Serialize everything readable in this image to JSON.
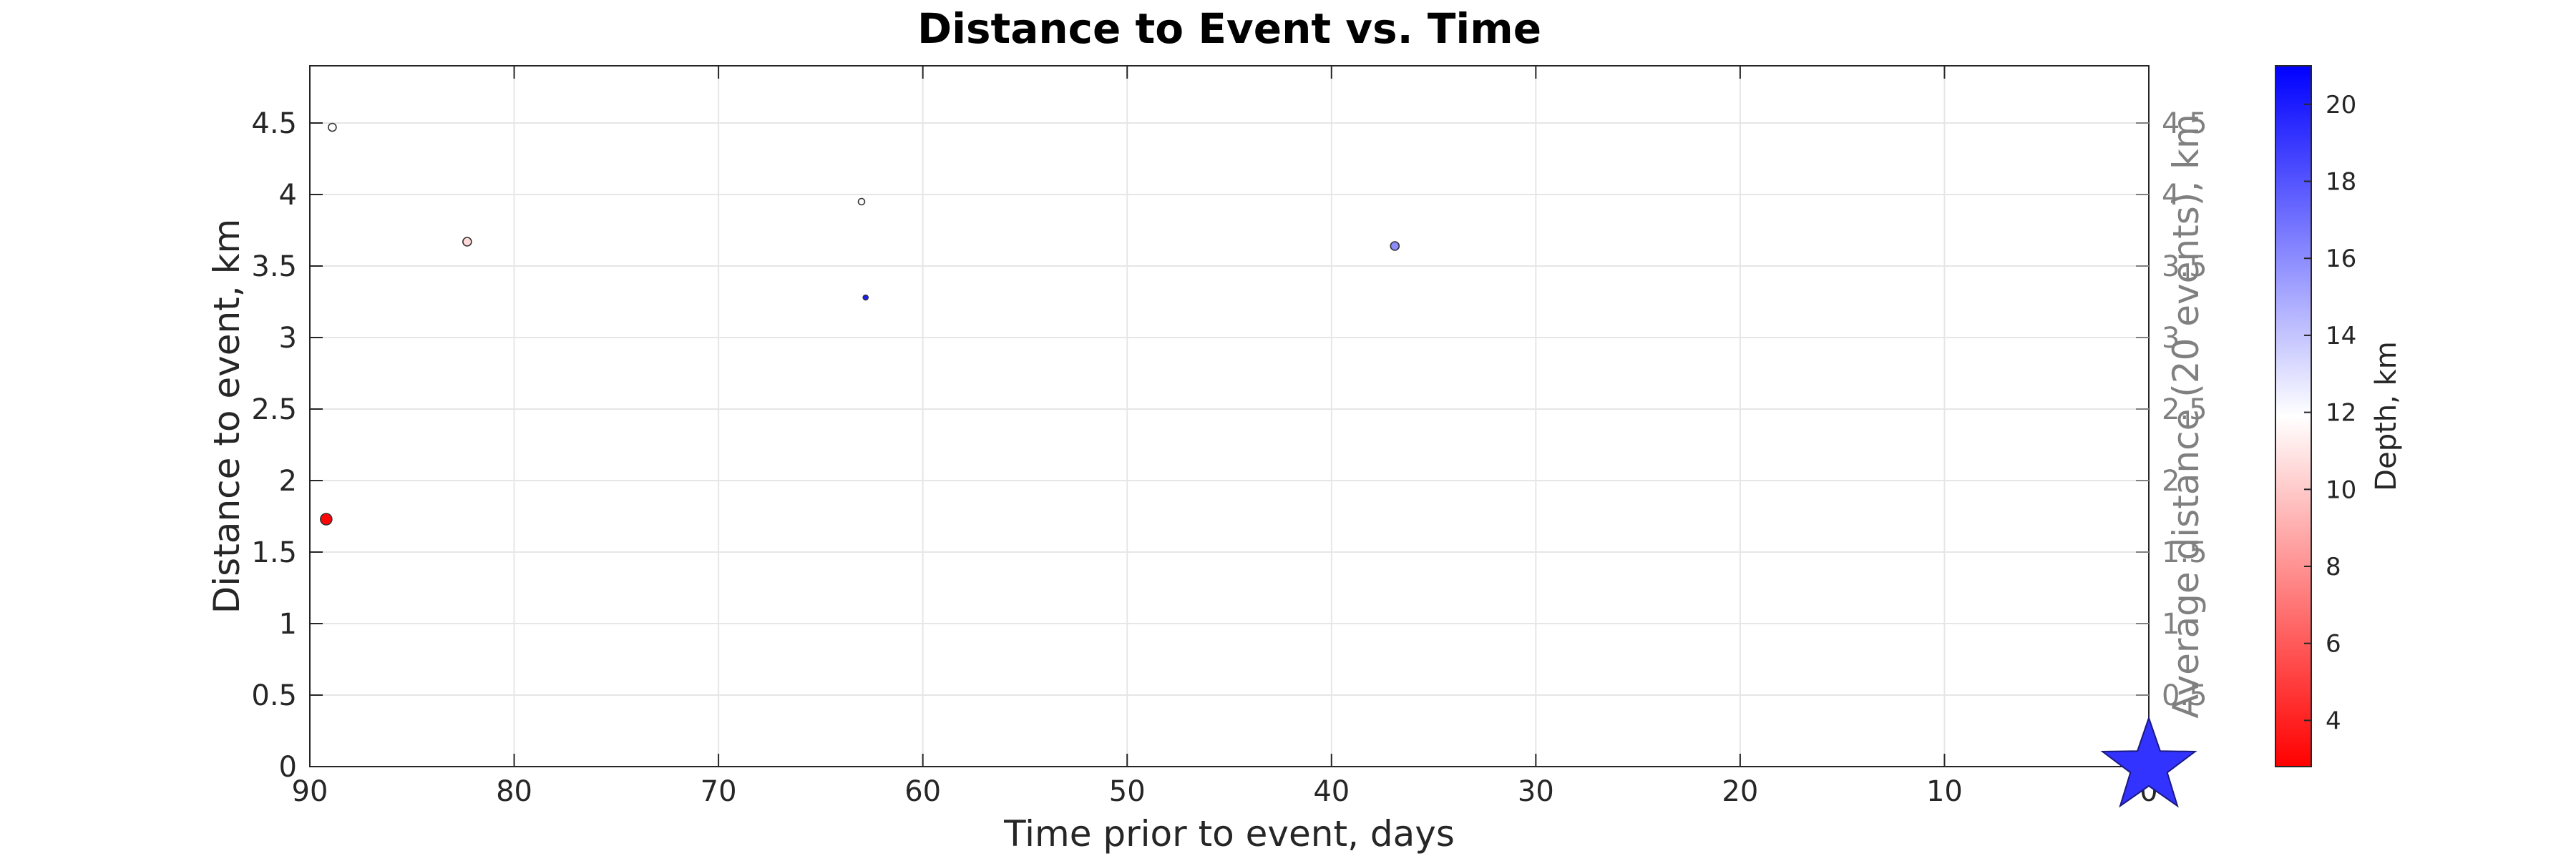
{
  "chart_data": {
    "type": "scatter",
    "title": "Distance to Event vs. Time",
    "xlabel": "Time prior to event, days",
    "ylabel": "Distance to event, km",
    "y2label": "Average distance (20 events), km",
    "colorbar_label": "Depth, km",
    "x_reversed": true,
    "xlim": [
      90,
      0
    ],
    "ylim": [
      0,
      4.9
    ],
    "y2lim": [
      0,
      4.9
    ],
    "xticks": [
      90,
      80,
      70,
      60,
      50,
      40,
      30,
      20,
      10,
      0
    ],
    "yticks": [
      0,
      0.5,
      1,
      1.5,
      2,
      2.5,
      3,
      3.5,
      4,
      4.5
    ],
    "y2ticks": [
      0.5,
      1,
      1.5,
      2,
      2.5,
      3,
      3.5,
      4,
      4.5
    ],
    "grid": true,
    "colorbar": {
      "min": 2.8,
      "max": 21,
      "ticks": [
        4,
        6,
        8,
        10,
        12,
        14,
        16,
        18,
        20
      ],
      "colormap": [
        "#ff0000",
        "#ffffff",
        "#0000ff"
      ]
    },
    "points": [
      {
        "x": 88.9,
        "y": 4.47,
        "depth": 12,
        "size": 9
      },
      {
        "x": 89.2,
        "y": 1.73,
        "depth": 3,
        "size": 14
      },
      {
        "x": 82.3,
        "y": 3.67,
        "depth": 10.5,
        "size": 10
      },
      {
        "x": 63.0,
        "y": 3.95,
        "depth": 12,
        "size": 7
      },
      {
        "x": 62.8,
        "y": 3.28,
        "depth": 20,
        "size": 5
      },
      {
        "x": 36.9,
        "y": 3.64,
        "depth": 16,
        "size": 10
      }
    ],
    "event_marker": {
      "x": 0,
      "y": 0,
      "shape": "star",
      "color": "#3333ff"
    },
    "colors": {
      "axis": "#262626",
      "secondary_axis": "#808080",
      "grid": "#e6e6e6"
    }
  }
}
